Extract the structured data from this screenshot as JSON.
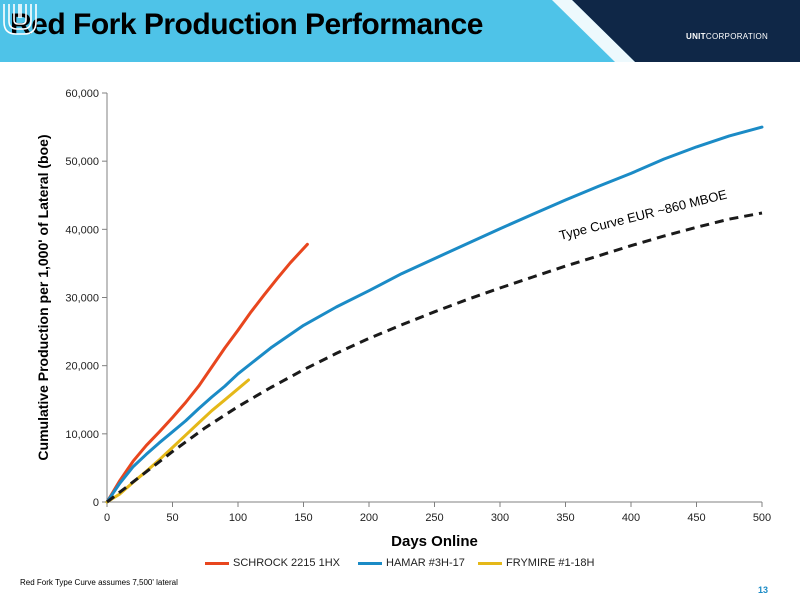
{
  "header": {
    "title": "Red Fork Production Performance",
    "logo_text_bold": "UNIT",
    "logo_text": "CORPORATION",
    "banner_color": "#4ec3e8",
    "dark_color": "#0f2747"
  },
  "footer": {
    "footnote": "Red Fork Type Curve assumes 7,500' lateral",
    "page_number": "13"
  },
  "chart_data": {
    "type": "line",
    "title": "",
    "xlabel": "Days Online",
    "ylabel": "Cumulative Production per 1,000' of Lateral (boe)",
    "xlim": [
      0,
      500
    ],
    "ylim": [
      0,
      60000
    ],
    "x_ticks": [
      0,
      50,
      100,
      150,
      200,
      250,
      300,
      350,
      400,
      450,
      500
    ],
    "y_ticks": [
      0,
      10000,
      20000,
      30000,
      40000,
      50000,
      60000
    ],
    "x_tick_labels": [
      "0",
      "50",
      "100",
      "150",
      "200",
      "250",
      "300",
      "350",
      "400",
      "450",
      "500"
    ],
    "y_tick_labels": [
      "0",
      "10,000",
      "20,000",
      "30,000",
      "40,000",
      "50,000",
      "60,000"
    ],
    "grid": false,
    "legend_position": "bottom",
    "series": [
      {
        "name": "SCHROCK 2215 1HX",
        "color": "#e8461e",
        "style": "solid",
        "x": [
          0,
          10,
          20,
          30,
          40,
          50,
          60,
          70,
          80,
          90,
          100,
          110,
          120,
          130,
          140,
          153
        ],
        "y": [
          0,
          3200,
          6000,
          8300,
          10300,
          12400,
          14600,
          17000,
          19800,
          22600,
          25200,
          27900,
          30400,
          32800,
          35100,
          37800
        ]
      },
      {
        "name": "HAMAR #3H-17",
        "color": "#1b8bc6",
        "style": "solid",
        "x": [
          0,
          10,
          20,
          30,
          40,
          50,
          60,
          70,
          80,
          90,
          100,
          125,
          150,
          175,
          200,
          225,
          250,
          275,
          300,
          325,
          350,
          375,
          400,
          425,
          450,
          475,
          500
        ],
        "y": [
          0,
          2800,
          5200,
          7000,
          8700,
          10300,
          11900,
          13700,
          15400,
          17000,
          18800,
          22600,
          25900,
          28600,
          31000,
          33500,
          35700,
          37900,
          40100,
          42200,
          44300,
          46300,
          48200,
          50300,
          52100,
          53700,
          55000
        ]
      },
      {
        "name": "FRYMIRE #1-18H",
        "color": "#e5b818",
        "style": "solid",
        "x": [
          0,
          10,
          20,
          30,
          40,
          50,
          60,
          70,
          80,
          90,
          100,
          108
        ],
        "y": [
          0,
          1200,
          2900,
          4500,
          6200,
          8000,
          9800,
          11600,
          13400,
          15000,
          16600,
          17900
        ]
      },
      {
        "name": "",
        "color": "#1a1a1a",
        "style": "dashed",
        "x": [
          0,
          25,
          50,
          75,
          100,
          125,
          150,
          175,
          200,
          225,
          250,
          275,
          300,
          325,
          350,
          375,
          400,
          425,
          450,
          475,
          500
        ],
        "y": [
          0,
          3700,
          7400,
          10900,
          14000,
          16800,
          19400,
          21800,
          24000,
          26000,
          27900,
          29700,
          31400,
          33000,
          34600,
          36100,
          37600,
          39000,
          40300,
          41500,
          42400
        ]
      }
    ],
    "annotations": [
      {
        "text": "Type Curve EUR ~860 MBOE",
        "x": 410,
        "y": 41500
      }
    ]
  }
}
